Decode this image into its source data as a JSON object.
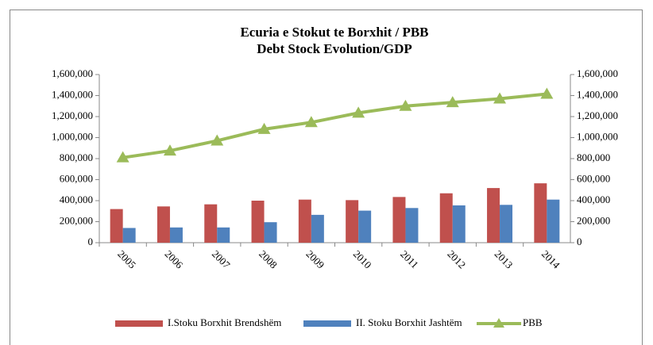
{
  "chart_data": {
    "type": "bar_line",
    "title": "Ecuria e Stokut te Borxhit / PBB",
    "subtitle": "Debt Stock Evolution/GDP",
    "categories": [
      "2005",
      "2006",
      "2007",
      "2008",
      "2009",
      "2010",
      "2011",
      "2012",
      "2013",
      "2014"
    ],
    "series": [
      {
        "name": "I.Stoku Borxhit Brendshëm",
        "type": "bar",
        "color": "#c0504d",
        "values": [
          320000,
          345000,
          365000,
          400000,
          410000,
          405000,
          435000,
          470000,
          520000,
          565000
        ]
      },
      {
        "name": "II. Stoku Borxhit Jashtëm",
        "type": "bar",
        "color": "#4f81bd",
        "values": [
          140000,
          145000,
          145000,
          195000,
          265000,
          305000,
          330000,
          355000,
          360000,
          410000
        ]
      },
      {
        "name": "PBB",
        "type": "line",
        "color": "#9bbb59",
        "values": [
          810000,
          875000,
          970000,
          1080000,
          1145000,
          1235000,
          1300000,
          1335000,
          1370000,
          1415000
        ]
      }
    ],
    "ylim": [
      0,
      1600000
    ],
    "yticks": [
      0,
      {
        "value": 200000,
        "label": "200,000"
      },
      {
        "value": 400000,
        "label": "400,000"
      },
      {
        "value": 600000,
        "label": "600,000"
      },
      {
        "value": 800000,
        "label": "800,000"
      },
      {
        "value": 1000000,
        "label": "1,000,000"
      },
      {
        "value": 1200000,
        "label": "1,200,000"
      },
      {
        "value": 1400000,
        "label": "1,400,000"
      },
      {
        "value": 1600000,
        "label": "1,600,000"
      }
    ],
    "y2lim": [
      0,
      1600000
    ],
    "y2ticks": [
      0,
      {
        "value": 200000,
        "label": "200,000"
      },
      {
        "value": 400000,
        "label": "400,000"
      },
      {
        "value": 600000,
        "label": "600,000"
      },
      {
        "value": 800000,
        "label": "800,000"
      },
      {
        "value": 1000000,
        "label": "1,000,000"
      },
      {
        "value": 1200000,
        "label": "1,200,000"
      },
      {
        "value": 1400000,
        "label": "1,400,000"
      },
      {
        "value": 1600000,
        "label": "1,600,000"
      }
    ],
    "legend": "bottom"
  }
}
